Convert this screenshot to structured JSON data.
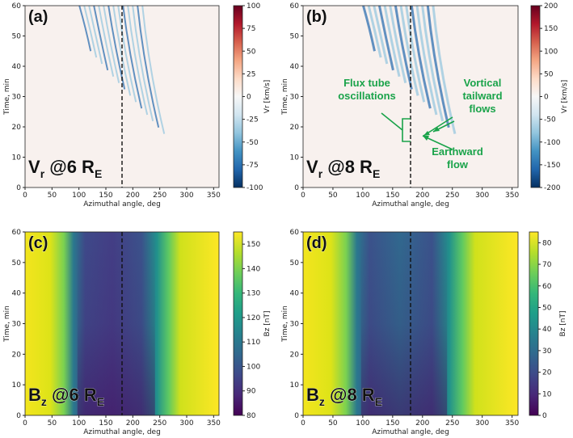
{
  "chart_data": [
    {
      "type": "heatmap",
      "panel_label": "(a)",
      "xlabel": "Azimuthal angle, deg",
      "ylabel": "Time, min",
      "xlim": [
        0,
        360
      ],
      "xticks": [
        0,
        50,
        100,
        150,
        200,
        250,
        300,
        350
      ],
      "ylim": [
        0,
        60
      ],
      "yticks": [
        0,
        10,
        20,
        30,
        40,
        50,
        60
      ],
      "vline": 180,
      "colormap": "RdBu_r",
      "colorbar_label": "Vr [km/s]",
      "clim": [
        -100,
        100
      ],
      "cticks": [
        -100,
        -75,
        -50,
        -25,
        0,
        25,
        50,
        75,
        100
      ],
      "annotation": [
        "V",
        "r",
        " @6 R",
        "E"
      ]
    },
    {
      "type": "heatmap",
      "panel_label": "(b)",
      "xlabel": "Azimuthal angle, deg",
      "ylabel": "Time, min",
      "xlim": [
        0,
        360
      ],
      "xticks": [
        0,
        50,
        100,
        150,
        200,
        250,
        300,
        350
      ],
      "ylim": [
        0,
        60
      ],
      "yticks": [
        0,
        10,
        20,
        30,
        40,
        50,
        60
      ],
      "vline": 180,
      "colormap": "RdBu_r",
      "colorbar_label": "Vr [km/s]",
      "clim": [
        -200,
        200
      ],
      "cticks": [
        -200,
        -150,
        -100,
        -50,
        0,
        50,
        100,
        150,
        200
      ],
      "annotation": [
        "V",
        "r",
        " @8 R",
        "E"
      ],
      "callouts": [
        [
          "Flux tube",
          "oscillations"
        ],
        [
          "Vortical",
          "tailward",
          "flows"
        ],
        [
          "Earthward",
          "flow"
        ]
      ],
      "callout_color": "#1aa34a"
    },
    {
      "type": "heatmap",
      "panel_label": "(c)",
      "xlabel": "Azimuthal angle, deg",
      "ylabel": "Time, min",
      "xlim": [
        0,
        360
      ],
      "xticks": [
        0,
        50,
        100,
        150,
        200,
        250,
        300,
        350
      ],
      "ylim": [
        0,
        60
      ],
      "yticks": [
        0,
        10,
        20,
        30,
        40,
        50,
        60
      ],
      "vline": 180,
      "colormap": "viridis",
      "colorbar_label": "Bz [nT]",
      "clim": [
        80,
        155
      ],
      "cticks": [
        80,
        90,
        100,
        110,
        120,
        130,
        140,
        150
      ],
      "annotation": [
        "B",
        "z",
        " @6 R",
        "E"
      ]
    },
    {
      "type": "heatmap",
      "panel_label": "(d)",
      "xlabel": "Azimuthal angle, deg",
      "ylabel": "Time, min",
      "xlim": [
        0,
        360
      ],
      "xticks": [
        0,
        50,
        100,
        150,
        200,
        250,
        300,
        350
      ],
      "ylim": [
        0,
        60
      ],
      "yticks": [
        0,
        10,
        20,
        30,
        40,
        50,
        60
      ],
      "vline": 180,
      "colormap": "viridis",
      "colorbar_label": "Bz [nT]",
      "clim": [
        0,
        85
      ],
      "cticks": [
        0,
        10,
        20,
        30,
        40,
        50,
        60,
        70,
        80
      ],
      "annotation": [
        "B",
        "z",
        " @8 R",
        "E"
      ]
    }
  ]
}
